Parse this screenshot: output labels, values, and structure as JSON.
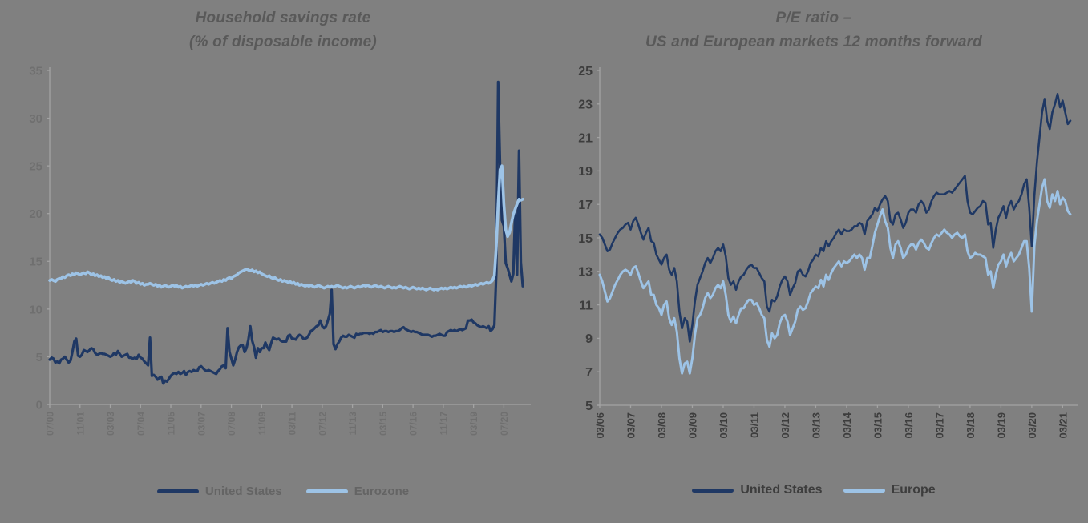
{
  "page": {
    "background_color": "#808080",
    "title_color": "#595959"
  },
  "chart_data": [
    {
      "type": "line",
      "title": "Household savings rate",
      "subtitle": "(% of disposable income)",
      "grid": false,
      "legend_position": "bottom",
      "axis_color": "#A3A3A3",
      "label_color": "#6F6F6F",
      "ylim": [
        0,
        35
      ],
      "y_ticks": [
        0,
        5,
        10,
        15,
        20,
        25,
        30,
        35
      ],
      "x_axis": {
        "tick_labels": [
          "07/00",
          "11/01",
          "03/03",
          "07/04",
          "11/05",
          "03/07",
          "07/08",
          "11/09",
          "03/11",
          "07/12",
          "11/13",
          "03/15",
          "07/16",
          "11/17",
          "03/19",
          "07/20"
        ],
        "tick_indices": [
          0,
          16,
          32,
          48,
          64,
          80,
          96,
          112,
          128,
          144,
          160,
          176,
          192,
          208,
          224,
          240
        ],
        "frequency": "monthly"
      },
      "series": [
        {
          "name": "United States",
          "color": "#1F3864",
          "values": [
            4.7,
            4.9,
            4.8,
            4.4,
            4.5,
            4.3,
            4.7,
            4.8,
            5.0,
            4.7,
            4.4,
            4.6,
            5.5,
            6.6,
            6.9,
            5.1,
            5.0,
            5.2,
            5.7,
            5.6,
            5.5,
            5.7,
            5.9,
            5.8,
            5.4,
            5.2,
            5.3,
            5.4,
            5.3,
            5.3,
            5.2,
            5.1,
            5.0,
            5.1,
            5.4,
            5.2,
            5.6,
            5.3,
            5.0,
            5.1,
            5.2,
            5.3,
            4.9,
            4.9,
            4.8,
            4.9,
            4.8,
            5.2,
            4.9,
            4.8,
            4.5,
            4.3,
            4.1,
            7.0,
            3.0,
            3.1,
            2.9,
            2.6,
            2.8,
            2.9,
            2.2,
            2.5,
            2.4,
            2.7,
            3.0,
            3.2,
            3.3,
            3.2,
            3.4,
            3.2,
            3.3,
            3.5,
            3.1,
            3.4,
            3.5,
            3.4,
            3.6,
            3.5,
            3.5,
            3.9,
            4.0,
            3.8,
            3.6,
            3.5,
            3.6,
            3.5,
            3.4,
            3.3,
            3.2,
            3.5,
            3.7,
            4.0,
            4.1,
            3.8,
            8.0,
            5.5,
            4.8,
            4.1,
            4.7,
            5.5,
            6.0,
            6.2,
            6.2,
            5.5,
            5.9,
            6.8,
            8.2,
            6.7,
            6.0,
            4.9,
            5.9,
            5.5,
            5.9,
            5.9,
            6.5,
            6.0,
            5.7,
            6.4,
            7.0,
            6.9,
            6.8,
            6.9,
            6.7,
            6.6,
            6.6,
            6.6,
            7.2,
            7.3,
            6.9,
            6.9,
            6.8,
            7.1,
            7.3,
            7.2,
            6.9,
            6.9,
            7.0,
            7.3,
            7.7,
            7.8,
            8.0,
            8.2,
            8.3,
            8.8,
            8.2,
            8.0,
            8.2,
            8.8,
            9.5,
            12.0,
            6.3,
            5.8,
            6.3,
            6.6,
            7.0,
            7.2,
            7.1,
            7.1,
            7.3,
            7.2,
            7.1,
            7.0,
            7.4,
            7.3,
            7.4,
            7.4,
            7.5,
            7.5,
            7.5,
            7.4,
            7.5,
            7.4,
            7.6,
            7.6,
            7.7,
            7.8,
            7.6,
            7.7,
            7.7,
            7.6,
            7.7,
            7.7,
            7.6,
            7.7,
            7.7,
            7.8,
            8.0,
            8.1,
            7.9,
            7.8,
            7.7,
            7.6,
            7.7,
            7.6,
            7.6,
            7.5,
            7.4,
            7.3,
            7.3,
            7.3,
            7.3,
            7.2,
            7.1,
            7.2,
            7.2,
            7.3,
            7.4,
            7.3,
            7.2,
            7.2,
            7.6,
            7.7,
            7.8,
            7.7,
            7.8,
            7.7,
            7.8,
            7.9,
            7.8,
            7.9,
            8.0,
            8.8,
            8.8,
            8.9,
            8.6,
            8.5,
            8.3,
            8.2,
            8.1,
            8.2,
            8.1,
            8.0,
            8.2,
            7.7,
            7.9,
            8.3,
            13.8,
            33.8,
            24.8,
            19.3,
            18.7,
            14.8,
            14.3,
            13.6,
            12.9,
            13.7,
            20.5,
            13.6,
            26.6,
            14.9,
            12.4
          ]
        },
        {
          "name": "Eurozone",
          "color": "#9DC3E6",
          "values": [
            13.0,
            13.1,
            13.0,
            12.9,
            13.1,
            13.2,
            13.2,
            13.4,
            13.3,
            13.5,
            13.6,
            13.5,
            13.7,
            13.6,
            13.8,
            13.7,
            13.6,
            13.7,
            13.8,
            13.7,
            13.9,
            13.8,
            13.6,
            13.7,
            13.5,
            13.6,
            13.4,
            13.5,
            13.3,
            13.4,
            13.2,
            13.3,
            13.1,
            13.0,
            13.1,
            12.9,
            13.0,
            12.8,
            12.9,
            12.8,
            12.7,
            12.8,
            12.9,
            12.8,
            13.0,
            12.9,
            12.7,
            12.8,
            12.6,
            12.7,
            12.5,
            12.6,
            12.6,
            12.7,
            12.6,
            12.5,
            12.6,
            12.4,
            12.5,
            12.3,
            12.4,
            12.5,
            12.4,
            12.3,
            12.4,
            12.5,
            12.4,
            12.5,
            12.3,
            12.4,
            12.2,
            12.3,
            12.4,
            12.3,
            12.4,
            12.5,
            12.4,
            12.5,
            12.4,
            12.5,
            12.6,
            12.5,
            12.6,
            12.7,
            12.6,
            12.7,
            12.8,
            12.7,
            12.8,
            12.9,
            13.0,
            12.9,
            13.1,
            13.0,
            13.2,
            13.3,
            13.2,
            13.4,
            13.5,
            13.6,
            13.8,
            13.9,
            14.0,
            14.1,
            14.2,
            14.1,
            14.0,
            14.1,
            13.9,
            14.0,
            13.8,
            13.9,
            13.7,
            13.6,
            13.5,
            13.4,
            13.5,
            13.3,
            13.2,
            13.3,
            13.1,
            13.0,
            13.1,
            12.9,
            13.0,
            12.9,
            12.8,
            12.9,
            12.7,
            12.8,
            12.6,
            12.7,
            12.5,
            12.6,
            12.5,
            12.4,
            12.5,
            12.4,
            12.5,
            12.4,
            12.3,
            12.4,
            12.5,
            12.4,
            12.3,
            12.2,
            12.3,
            12.4,
            12.3,
            12.4,
            12.3,
            12.4,
            12.5,
            12.4,
            12.3,
            12.2,
            12.3,
            12.2,
            12.3,
            12.4,
            12.3,
            12.2,
            12.3,
            12.4,
            12.3,
            12.4,
            12.5,
            12.4,
            12.5,
            12.4,
            12.3,
            12.4,
            12.5,
            12.4,
            12.3,
            12.4,
            12.3,
            12.2,
            12.3,
            12.4,
            12.3,
            12.2,
            12.3,
            12.2,
            12.3,
            12.4,
            12.3,
            12.2,
            12.3,
            12.2,
            12.1,
            12.2,
            12.3,
            12.2,
            12.1,
            12.2,
            12.1,
            12.2,
            12.1,
            12.0,
            12.1,
            12.2,
            12.1,
            12.0,
            12.1,
            12.0,
            12.1,
            12.2,
            12.1,
            12.2,
            12.1,
            12.2,
            12.3,
            12.2,
            12.3,
            12.2,
            12.3,
            12.4,
            12.3,
            12.4,
            12.3,
            12.4,
            12.5,
            12.4,
            12.5,
            12.6,
            12.5,
            12.6,
            12.7,
            12.6,
            12.7,
            12.8,
            12.7,
            12.8,
            13.0,
            13.5,
            16.6,
            21.0,
            24.6,
            25.0,
            21.0,
            18.3,
            17.6,
            18.0,
            19.0,
            19.9,
            20.5,
            21.0,
            21.5,
            21.4,
            21.5
          ]
        }
      ]
    },
    {
      "type": "line",
      "title": "P/E ratio –",
      "subtitle": "US and European markets 12 months forward",
      "grid": false,
      "legend_position": "bottom",
      "axis_color": "#A3A3A3",
      "label_color": "#3D3D3D",
      "ylim": [
        5,
        25
      ],
      "y_ticks": [
        5,
        7,
        9,
        11,
        13,
        15,
        17,
        19,
        21,
        23,
        25
      ],
      "x_axis": {
        "tick_labels": [
          "03/06",
          "03/07",
          "03/08",
          "03/09",
          "03/10",
          "03/11",
          "03/12",
          "03/13",
          "03/14",
          "03/15",
          "03/16",
          "03/17",
          "03/18",
          "03/19",
          "03/20",
          "03/21"
        ],
        "tick_indices": [
          0,
          12,
          24,
          36,
          48,
          60,
          72,
          84,
          96,
          108,
          120,
          132,
          144,
          156,
          168,
          180
        ],
        "frequency": "monthly"
      },
      "series": [
        {
          "name": "United States",
          "color": "#1F3864",
          "values": [
            15.2,
            15.0,
            14.6,
            14.2,
            14.3,
            14.7,
            15.0,
            15.3,
            15.5,
            15.6,
            15.8,
            15.9,
            15.5,
            16.0,
            16.2,
            15.8,
            15.3,
            14.9,
            15.3,
            15.6,
            14.8,
            14.7,
            14.0,
            13.7,
            13.4,
            13.8,
            14.0,
            13.1,
            12.8,
            13.2,
            12.4,
            10.6,
            9.6,
            10.2,
            10.0,
            8.8,
            9.8,
            11.2,
            12.2,
            12.6,
            13.0,
            13.5,
            13.8,
            13.5,
            13.8,
            14.2,
            14.4,
            14.2,
            14.6,
            13.9,
            12.6,
            12.2,
            12.4,
            11.9,
            12.4,
            12.7,
            12.8,
            13.1,
            13.3,
            13.4,
            13.2,
            13.2,
            12.9,
            12.6,
            12.4,
            10.9,
            10.6,
            11.3,
            11.2,
            11.5,
            12.1,
            12.5,
            12.7,
            12.4,
            11.6,
            12.0,
            12.3,
            13.0,
            13.1,
            12.8,
            12.7,
            13.0,
            13.5,
            13.7,
            14.0,
            13.9,
            14.4,
            14.2,
            14.8,
            14.5,
            14.8,
            15.0,
            15.3,
            15.5,
            15.2,
            15.5,
            15.4,
            15.4,
            15.5,
            15.7,
            15.7,
            15.9,
            15.8,
            15.2,
            16.0,
            16.2,
            16.4,
            16.8,
            16.6,
            17.0,
            17.3,
            17.5,
            17.2,
            16.0,
            15.8,
            16.4,
            16.5,
            16.1,
            15.6,
            15.9,
            16.5,
            16.7,
            16.7,
            16.5,
            17.0,
            17.2,
            17.0,
            16.5,
            16.7,
            17.2,
            17.5,
            17.7,
            17.6,
            17.6,
            17.6,
            17.7,
            17.8,
            17.7,
            17.9,
            18.1,
            18.3,
            18.5,
            18.7,
            17.2,
            16.5,
            16.4,
            16.6,
            16.8,
            16.9,
            17.2,
            17.1,
            15.8,
            15.9,
            14.4,
            15.5,
            16.2,
            16.5,
            16.9,
            16.2,
            16.9,
            17.2,
            16.7,
            17.0,
            17.2,
            17.6,
            18.2,
            18.5,
            16.8,
            14.5,
            17.5,
            19.5,
            21.0,
            22.5,
            23.3,
            22.0,
            21.5,
            22.5,
            23.0,
            23.6,
            22.8,
            23.2,
            22.5,
            21.8,
            22.0
          ]
        },
        {
          "name": "Europe",
          "color": "#9DC3E6",
          "values": [
            12.8,
            12.4,
            11.8,
            11.2,
            11.4,
            11.8,
            12.2,
            12.5,
            12.8,
            13.0,
            13.1,
            13.0,
            12.8,
            13.2,
            13.3,
            12.9,
            12.4,
            12.0,
            12.2,
            12.4,
            11.6,
            11.6,
            11.0,
            10.8,
            10.4,
            11.0,
            11.2,
            10.2,
            9.8,
            10.2,
            9.4,
            7.8,
            6.9,
            7.5,
            7.6,
            6.9,
            7.8,
            9.2,
            10.2,
            10.4,
            10.8,
            11.4,
            11.7,
            11.4,
            11.6,
            12.0,
            12.2,
            12.0,
            12.4,
            11.6,
            10.4,
            10.0,
            10.3,
            9.9,
            10.4,
            10.8,
            10.8,
            11.1,
            11.3,
            11.3,
            11.0,
            11.1,
            10.8,
            10.4,
            10.2,
            8.9,
            8.5,
            9.3,
            9.0,
            9.2,
            9.9,
            10.3,
            10.4,
            10.0,
            9.2,
            9.6,
            10.0,
            10.7,
            10.9,
            10.7,
            10.8,
            11.2,
            11.7,
            11.9,
            12.1,
            12.0,
            12.5,
            12.1,
            12.8,
            12.5,
            12.9,
            13.2,
            13.4,
            13.6,
            13.3,
            13.6,
            13.5,
            13.6,
            13.8,
            14.0,
            13.8,
            14.0,
            13.8,
            13.1,
            13.8,
            13.8,
            14.5,
            15.3,
            15.8,
            16.3,
            16.7,
            16.0,
            15.6,
            14.4,
            13.8,
            14.6,
            14.8,
            14.4,
            13.8,
            14.0,
            14.4,
            14.6,
            14.6,
            14.3,
            14.7,
            14.9,
            14.7,
            14.4,
            14.3,
            14.7,
            15.0,
            15.2,
            15.1,
            15.3,
            15.5,
            15.3,
            15.2,
            15.0,
            15.2,
            15.3,
            15.1,
            15.0,
            15.2,
            14.2,
            13.8,
            13.9,
            14.1,
            14.0,
            14.0,
            13.9,
            13.8,
            12.8,
            13.0,
            12.0,
            12.8,
            13.4,
            13.6,
            14.0,
            13.3,
            13.8,
            14.1,
            13.6,
            13.8,
            14.0,
            14.4,
            14.8,
            14.8,
            13.2,
            10.6,
            14.5,
            16.0,
            17.0,
            18.0,
            18.5,
            17.2,
            16.8,
            17.6,
            17.2,
            17.8,
            17.0,
            17.4,
            17.2,
            16.6,
            16.4
          ]
        }
      ]
    }
  ]
}
